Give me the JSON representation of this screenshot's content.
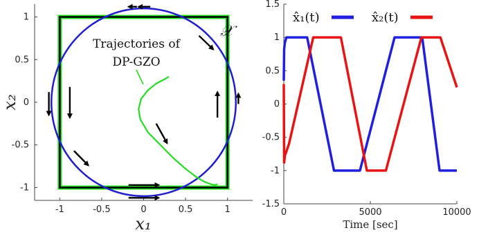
{
  "chart_data": [
    {
      "type": "line",
      "xlabel": "x₁",
      "ylabel": "x₂",
      "xlim": [
        -1.3,
        1.3
      ],
      "ylim": [
        -1.15,
        1.15
      ],
      "xticks": [
        "-1",
        "-0.5",
        "0",
        "0.5",
        "1"
      ],
      "yticks": [
        "1",
        "0.5",
        "0",
        "-0.5",
        "-1"
      ],
      "set_label": "𝒳",
      "annotation": [
        "Trajectories of",
        "DP-GZO"
      ],
      "colors": {
        "box": "#000000",
        "circle": "#1f1fd0",
        "trajectory": "#22dd22",
        "arrows": "#000000"
      },
      "box": {
        "x": [
          -1,
          1
        ],
        "y": [
          -1,
          1
        ]
      },
      "circle": {
        "center": [
          0,
          0
        ],
        "radius": 1.1
      },
      "inner_trajectory": {
        "x": [
          0.3,
          0.25,
          0.15,
          0.05,
          -0.03,
          -0.06,
          -0.04,
          0.05,
          0.2,
          0.35,
          0.5,
          0.62,
          0.72,
          0.8,
          0.85,
          0.88
        ],
        "y": [
          0.3,
          0.27,
          0.22,
          0.14,
          0.04,
          -0.08,
          -0.2,
          -0.35,
          -0.5,
          -0.65,
          -0.78,
          -0.87,
          -0.93,
          -0.96,
          -0.97,
          -0.96
        ]
      }
    },
    {
      "type": "line",
      "xlabel": "Time [sec]",
      "xlim": [
        0,
        10000
      ],
      "ylim": [
        -1.5,
        1.5
      ],
      "xticks": [
        "0",
        "5000",
        "10000"
      ],
      "yticks": [
        "1.5",
        "1",
        "0.5",
        "0",
        "-0.5",
        "-1",
        "-1.5"
      ],
      "legend_position": "top",
      "series": [
        {
          "name": "x̂₁(t)",
          "color": "#1f1fe0",
          "x": [
            0,
            20,
            60,
            150,
            350,
            1350,
            2900,
            3450,
            4400,
            6400,
            7450,
            8000,
            9000,
            10000
          ],
          "y": [
            0.35,
            0.82,
            0.92,
            1.0,
            1.0,
            1.0,
            -1.0,
            -1.0,
            -1.0,
            1.0,
            1.0,
            1.0,
            -1.0,
            -1.0
          ]
        },
        {
          "name": "x̂₂(t)",
          "color": "#e81414",
          "x": [
            0,
            20,
            60,
            300,
            1700,
            2800,
            3300,
            4800,
            5900,
            7950,
            9050,
            10000
          ],
          "y": [
            0.3,
            -0.88,
            -0.78,
            -0.6,
            1.0,
            1.0,
            1.0,
            -1.0,
            -1.0,
            1.0,
            1.0,
            0.25
          ]
        }
      ]
    }
  ]
}
